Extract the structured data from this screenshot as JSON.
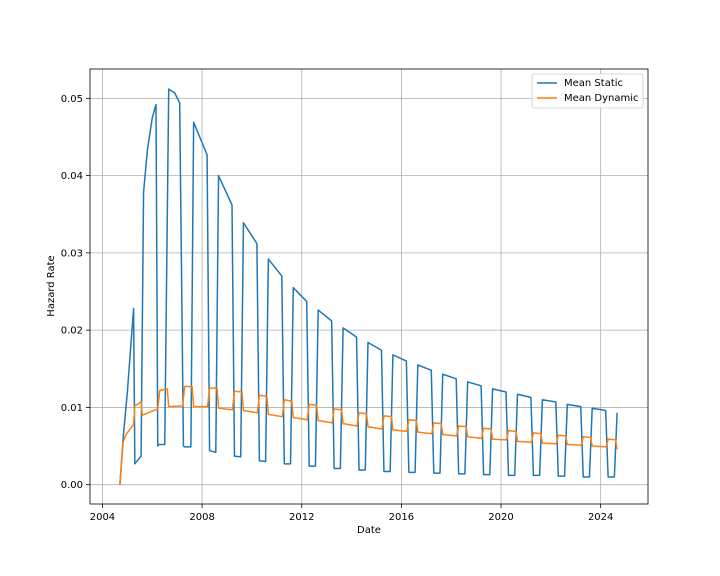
{
  "chart_data": {
    "type": "line",
    "xlabel": "Date",
    "ylabel": "Hazard Rate",
    "x_ticks": [
      "2004",
      "2008",
      "2012",
      "2016",
      "2020",
      "2024"
    ],
    "y_ticks": [
      "0.00",
      "0.01",
      "0.02",
      "0.03",
      "0.04",
      "0.05"
    ],
    "xlim": [
      2003.5,
      2025.9
    ],
    "ylim": [
      -0.0025,
      0.0538
    ],
    "grid": true,
    "legend": "top-right",
    "series": [
      {
        "name": "Mean Static",
        "color": "#1f77b4",
        "x": [
          2004.7,
          2004.83,
          2005.0,
          2005.25,
          2005.3,
          2005.55,
          2005.65,
          2005.8,
          2006.0,
          2006.15,
          2006.22,
          2006.25,
          2006.5,
          2006.66,
          2006.7,
          2006.9,
          2007.1,
          2007.25,
          2007.3,
          2007.55,
          2007.66,
          2008.2,
          2008.3,
          2008.55,
          2008.66,
          2009.2,
          2009.3,
          2009.55,
          2009.66,
          2010.2,
          2010.3,
          2010.55,
          2010.66,
          2011.2,
          2011.3,
          2011.55,
          2011.66,
          2012.2,
          2012.3,
          2012.55,
          2012.66,
          2013.2,
          2013.3,
          2013.55,
          2013.66,
          2014.2,
          2014.3,
          2014.55,
          2014.66,
          2015.2,
          2015.3,
          2015.55,
          2015.66,
          2016.2,
          2016.3,
          2016.55,
          2016.66,
          2017.2,
          2017.3,
          2017.55,
          2017.66,
          2018.2,
          2018.3,
          2018.55,
          2018.66,
          2019.2,
          2019.3,
          2019.55,
          2019.66,
          2020.2,
          2020.3,
          2020.55,
          2020.66,
          2021.2,
          2021.3,
          2021.55,
          2021.66,
          2022.2,
          2022.3,
          2022.55,
          2022.66,
          2023.2,
          2023.3,
          2023.55,
          2023.66,
          2024.2,
          2024.3,
          2024.55,
          2024.66
        ],
        "y": [
          0.0,
          0.006,
          0.012,
          0.0228,
          0.0027,
          0.0037,
          0.0378,
          0.0432,
          0.0475,
          0.0492,
          0.005,
          0.0052,
          0.0052,
          0.0512,
          0.0511,
          0.0507,
          0.0494,
          0.005,
          0.0049,
          0.0049,
          0.0469,
          0.0427,
          0.0044,
          0.0042,
          0.04,
          0.0362,
          0.0037,
          0.0036,
          0.0339,
          0.0312,
          0.0031,
          0.003,
          0.0292,
          0.027,
          0.0027,
          0.0027,
          0.0255,
          0.0237,
          0.0024,
          0.0024,
          0.0226,
          0.0212,
          0.0021,
          0.0021,
          0.0203,
          0.0191,
          0.0019,
          0.0019,
          0.0184,
          0.0174,
          0.0017,
          0.0017,
          0.0168,
          0.016,
          0.0016,
          0.0016,
          0.0155,
          0.0148,
          0.0015,
          0.0015,
          0.0143,
          0.0137,
          0.0014,
          0.0014,
          0.0133,
          0.0128,
          0.0013,
          0.0013,
          0.0124,
          0.012,
          0.0012,
          0.0012,
          0.0117,
          0.0113,
          0.0012,
          0.0012,
          0.011,
          0.0107,
          0.0011,
          0.0011,
          0.0104,
          0.0101,
          0.001,
          0.001,
          0.0099,
          0.0096,
          0.001,
          0.001,
          0.0093
        ]
      },
      {
        "name": "Mean Dynamic",
        "color": "#ff7f0e",
        "x": [
          2004.7,
          2004.83,
          2004.95,
          2005.25,
          2005.3,
          2005.55,
          2005.6,
          2006.22,
          2006.3,
          2006.6,
          2006.66,
          2007.22,
          2007.3,
          2007.6,
          2007.66,
          2008.22,
          2008.3,
          2008.6,
          2008.66,
          2009.22,
          2009.3,
          2009.6,
          2009.66,
          2010.22,
          2010.3,
          2010.6,
          2010.66,
          2011.22,
          2011.3,
          2011.6,
          2011.66,
          2012.22,
          2012.3,
          2012.6,
          2012.66,
          2013.22,
          2013.3,
          2013.6,
          2013.66,
          2014.22,
          2014.3,
          2014.6,
          2014.66,
          2015.22,
          2015.3,
          2015.6,
          2015.66,
          2016.22,
          2016.3,
          2016.6,
          2016.66,
          2017.22,
          2017.3,
          2017.6,
          2017.66,
          2018.22,
          2018.3,
          2018.6,
          2018.66,
          2019.22,
          2019.3,
          2019.6,
          2019.66,
          2020.22,
          2020.3,
          2020.6,
          2020.66,
          2021.22,
          2021.3,
          2021.6,
          2021.66,
          2022.22,
          2022.3,
          2022.6,
          2022.66,
          2023.22,
          2023.3,
          2023.6,
          2023.66,
          2024.22,
          2024.3,
          2024.6,
          2024.66
        ],
        "y": [
          0.0,
          0.0055,
          0.0065,
          0.0078,
          0.0102,
          0.0107,
          0.009,
          0.0098,
          0.0122,
          0.0124,
          0.0101,
          0.0102,
          0.0127,
          0.0127,
          0.0101,
          0.0101,
          0.0125,
          0.0125,
          0.0099,
          0.0097,
          0.0121,
          0.012,
          0.0096,
          0.0093,
          0.0116,
          0.0114,
          0.0091,
          0.0088,
          0.011,
          0.0108,
          0.0087,
          0.0084,
          0.0104,
          0.0103,
          0.0083,
          0.008,
          0.0098,
          0.0097,
          0.0079,
          0.0076,
          0.0093,
          0.0092,
          0.0075,
          0.0072,
          0.0089,
          0.0088,
          0.0071,
          0.0069,
          0.0084,
          0.0083,
          0.0068,
          0.0066,
          0.008,
          0.0079,
          0.0065,
          0.0063,
          0.0076,
          0.0075,
          0.0062,
          0.006,
          0.0073,
          0.0072,
          0.0059,
          0.0058,
          0.007,
          0.0069,
          0.0056,
          0.0055,
          0.0067,
          0.0066,
          0.0054,
          0.0053,
          0.0064,
          0.0063,
          0.0052,
          0.0051,
          0.0062,
          0.0061,
          0.005,
          0.0049,
          0.0059,
          0.0058,
          0.0046
        ]
      }
    ]
  }
}
